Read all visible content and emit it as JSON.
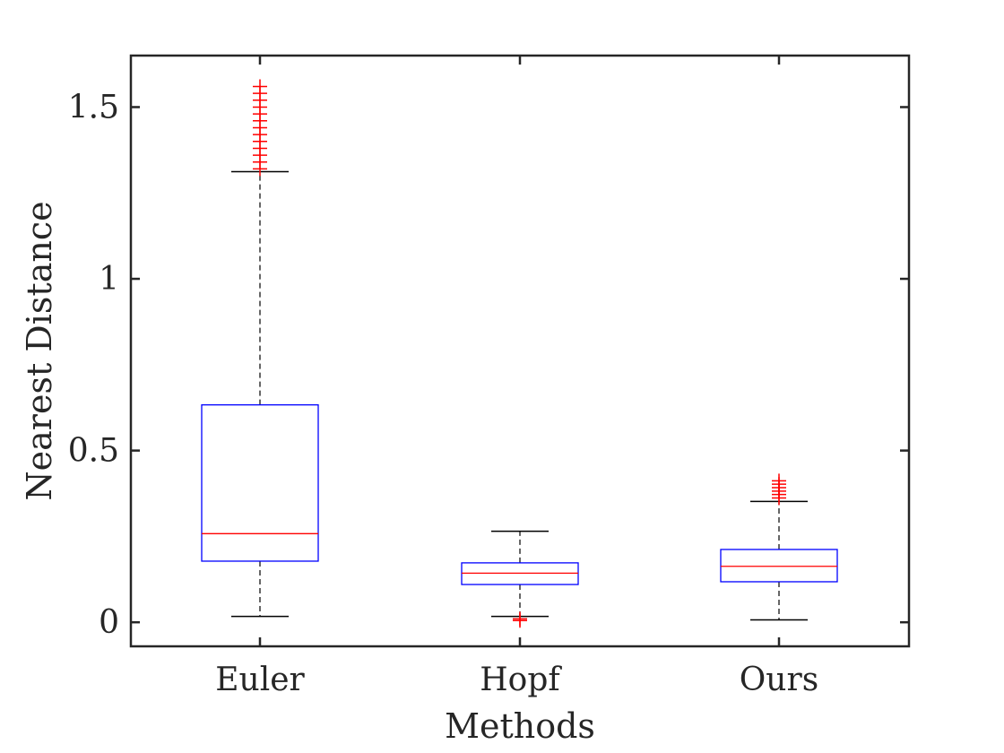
{
  "chart_data": {
    "type": "boxplot",
    "title": "",
    "xlabel": "Methods",
    "ylabel": "Nearest Distance",
    "categories": [
      "Euler",
      "Hopf",
      "Ours"
    ],
    "ylim": [
      -0.07,
      1.65
    ],
    "yticks": [
      0,
      0.5,
      1,
      1.5
    ],
    "ytick_labels": [
      "0",
      "0.5",
      "1",
      "1.5"
    ],
    "grid": false,
    "legend": "none",
    "colors": {
      "box": "#0000ff",
      "median": "#ff0000",
      "outlier": "#ff0000",
      "whisker": "#000000",
      "axis": "#262626"
    },
    "boxes": [
      {
        "name": "Euler",
        "whisker_low": 0.017,
        "q1": 0.178,
        "median": 0.258,
        "q3": 0.633,
        "whisker_high": 1.312,
        "outliers": [
          1.32,
          1.34,
          1.36,
          1.38,
          1.4,
          1.42,
          1.44,
          1.46,
          1.48,
          1.5,
          1.52,
          1.54,
          1.56
        ]
      },
      {
        "name": "Hopf",
        "whisker_low": 0.017,
        "q1": 0.11,
        "median": 0.143,
        "q3": 0.173,
        "whisker_high": 0.265,
        "outliers": [
          0.005,
          0.01
        ]
      },
      {
        "name": "Ours",
        "whisker_low": 0.007,
        "q1": 0.118,
        "median": 0.163,
        "q3": 0.212,
        "whisker_high": 0.352,
        "outliers": [
          0.362,
          0.372,
          0.382,
          0.392,
          0.402,
          0.412
        ]
      }
    ]
  }
}
